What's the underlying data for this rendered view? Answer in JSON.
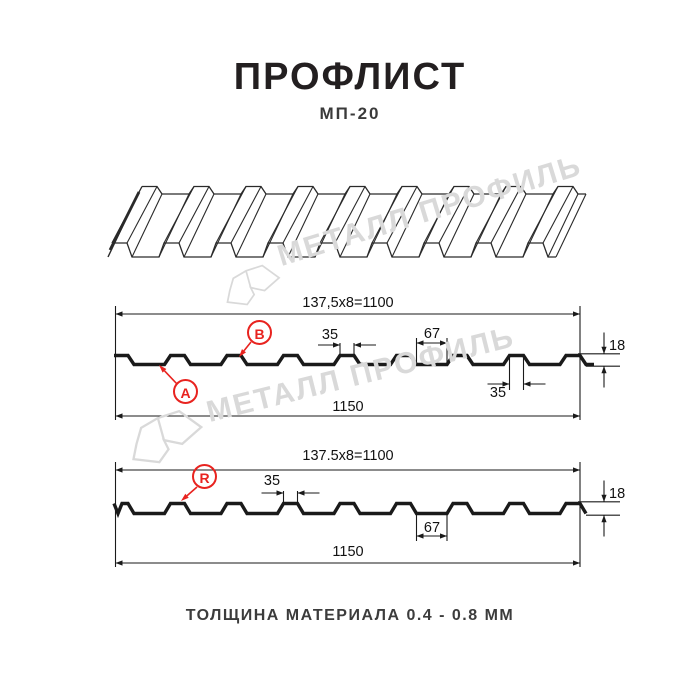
{
  "page": {
    "title": "ПРОФЛИСТ",
    "subtitle": "МП-20",
    "footer_note": "ТОЛЩИНА МАТЕРИАЛА 0.4 - 0.8 ММ"
  },
  "watermark": {
    "brand": "МЕТАЛЛ ПРОФИЛЬ"
  },
  "colors": {
    "line": "#1a1a1a",
    "accent_red": "#e8231f",
    "watermark_gray": "#d9d9d9"
  },
  "profile_top": {
    "pitch_dim": "137,5x8=1100",
    "rib_top_width": "35",
    "valley_width": "67",
    "rib_top_width_2": "35",
    "height": "18",
    "total_width": "1150",
    "label_a": "A",
    "label_b": "B"
  },
  "profile_bottom": {
    "pitch_dim": "137.5x8=1100",
    "rib_top_width": "35",
    "valley_width": "67",
    "height": "18",
    "total_width": "1150",
    "label_r": "R"
  },
  "drawing": {
    "profile_name": "МП-20",
    "rib_pitch_mm": 137.5,
    "ribs_per_pitch_count": 8,
    "profile_height_mm": 18,
    "covering_width_mm": 1100,
    "total_width_mm": 1150,
    "rib_top_mm": 35,
    "valley_mm": 67,
    "thickness_range_mm": "0.4 - 0.8"
  }
}
